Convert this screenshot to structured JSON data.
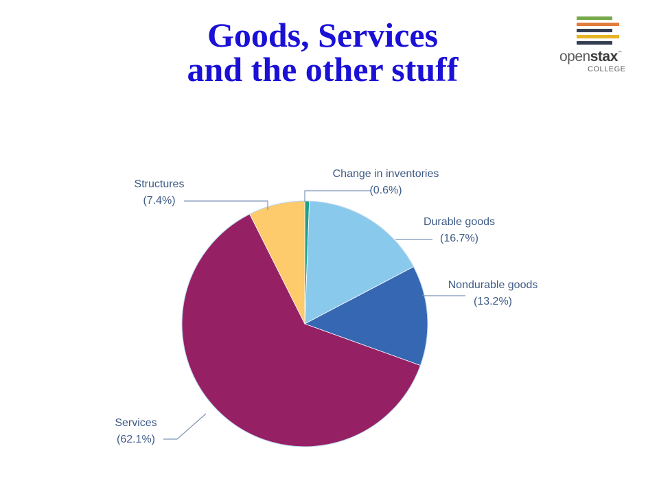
{
  "slide": {
    "title_line1": "Goods, Services",
    "title_line2": "and the other stuff"
  },
  "logo": {
    "word_light": "open",
    "word_bold": "stax",
    "trademark": "™",
    "subtitle": "COLLEGE",
    "stripe_colors": [
      "#77a84a",
      "#e27d3b",
      "#333d52",
      "#e6b524",
      "#333d52"
    ]
  },
  "chart_data": {
    "type": "pie",
    "start": "top",
    "direction": "clockwise",
    "slices": [
      {
        "name": "Change in inventories",
        "pct_label": "(0.6%)",
        "value": 0.6,
        "color": "#1fa08c"
      },
      {
        "name": "Durable goods",
        "pct_label": "(16.7%)",
        "value": 16.7,
        "color": "#89c9ec"
      },
      {
        "name": "Nondurable goods",
        "pct_label": "(13.2%)",
        "value": 13.2,
        "color": "#3567b3"
      },
      {
        "name": "Services",
        "pct_label": "(62.1%)",
        "value": 62.1,
        "color": "#962064"
      },
      {
        "name": "Structures",
        "pct_label": "(7.4%)",
        "value": 7.4,
        "color": "#fdcb6c"
      }
    ]
  }
}
